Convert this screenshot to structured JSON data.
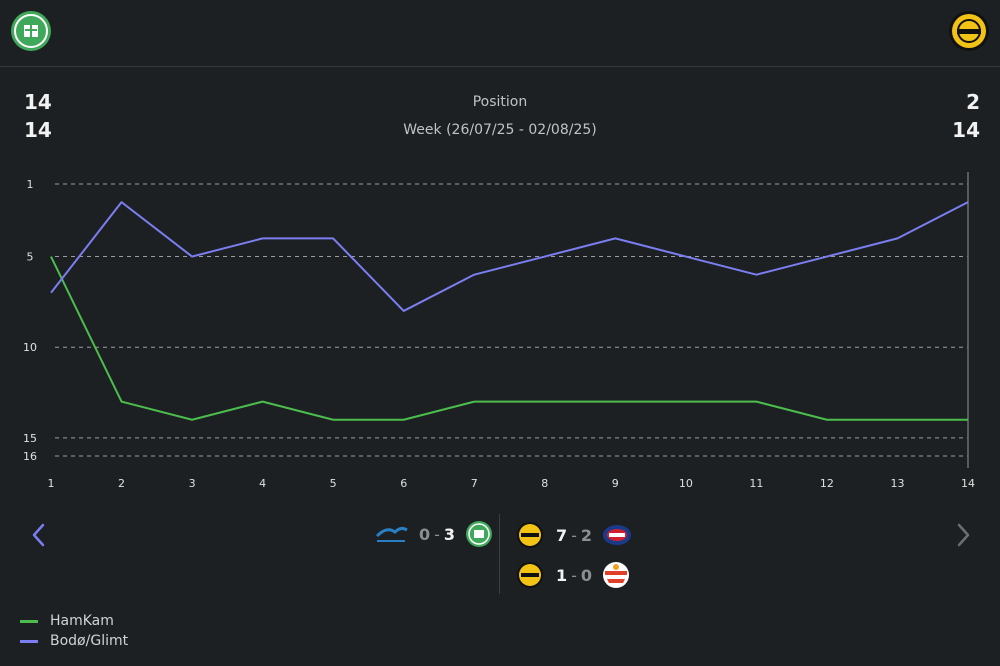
{
  "header": {
    "home_team": "HamKam",
    "away_team": "Bodø/Glimt",
    "home_crest_icon": "hamkam-crest-icon",
    "away_crest_icon": "bodo-glimt-crest-icon"
  },
  "summary": {
    "home_position": "14",
    "home_week_position": "14",
    "away_position": "2",
    "away_week_position": "14",
    "title": "Position",
    "subtitle": "Week (26/07/25 - 02/08/25)"
  },
  "colors": {
    "home": "#4cbd4c",
    "away": "#7b7ef0",
    "grid": "#9a9ea1",
    "background": "#1c2022"
  },
  "chart_data": {
    "type": "line",
    "title": "Position",
    "xlabel": "",
    "ylabel": "",
    "x": [
      1,
      2,
      3,
      4,
      5,
      6,
      7,
      8,
      9,
      10,
      11,
      12,
      13,
      14
    ],
    "y_ticks": [
      1,
      5,
      10,
      15,
      16
    ],
    "ylim": [
      1,
      16
    ],
    "y_inverted": true,
    "series": [
      {
        "name": "HamKam",
        "color": "#4cbd4c",
        "values": [
          5,
          13,
          14,
          13,
          14,
          14,
          13,
          13,
          13,
          13,
          13,
          14,
          14,
          14
        ]
      },
      {
        "name": "Bodø/Glimt",
        "color": "#7b7ef0",
        "values": [
          7,
          2,
          5,
          4,
          4,
          8,
          6,
          5,
          4,
          5,
          6,
          5,
          4,
          2
        ]
      }
    ],
    "grid": true,
    "legend": "bottom-left"
  },
  "matches": {
    "home": [
      {
        "home_crest": "kfum-oslo-crest-icon",
        "home_score": "0",
        "away_score": "3",
        "away_crest": "hamkam-crest-icon"
      }
    ],
    "away": [
      {
        "home_crest": "bodo-glimt-crest-icon",
        "home_score": "7",
        "away_score": "2",
        "away_crest": "valerenga-crest-icon"
      },
      {
        "home_crest": "bodo-glimt-crest-icon",
        "home_score": "1",
        "away_score": "0",
        "away_crest": "stromsgodset-crest-icon"
      }
    ]
  },
  "legend": {
    "home_label": "HamKam",
    "away_label": "Bodø/Glimt"
  },
  "nav": {
    "prev_icon": "chevron-left-icon",
    "next_icon": "chevron-right-icon"
  }
}
